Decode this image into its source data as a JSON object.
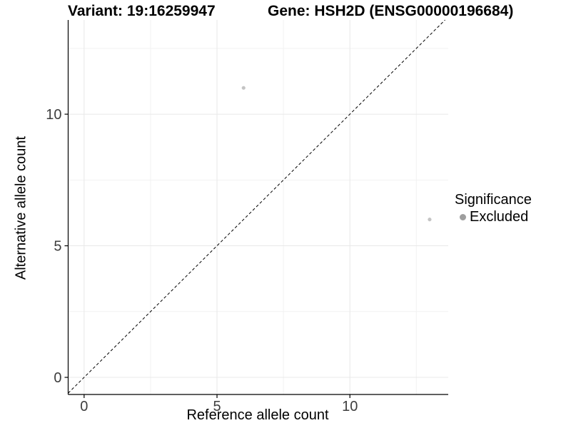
{
  "titles": {
    "variant": "Variant: 19:16259947",
    "gene": "Gene: HSH2D (ENSG00000196684)"
  },
  "chart_data": {
    "type": "scatter",
    "title_left": "Variant: 19:16259947",
    "title_right": "Gene: HSH2D (ENSG00000196684)",
    "xlabel": "Reference allele count",
    "ylabel": "Alternative allele count",
    "xlim": [
      -0.6,
      13.7
    ],
    "ylim": [
      -0.65,
      13.58
    ],
    "xticks": [
      0,
      5,
      10
    ],
    "yticks": [
      0,
      5,
      10
    ],
    "x_minor": [
      2.5,
      7.5,
      12.5
    ],
    "y_minor": [
      2.5,
      7.5,
      12.5
    ],
    "grid": true,
    "identity_line": {
      "present": true,
      "style": "dashed",
      "color": "#000000"
    },
    "series": [
      {
        "name": "Excluded",
        "significance": "Excluded",
        "point_color": "#c4c4c4",
        "points": [
          {
            "x": 6,
            "y": 11
          },
          {
            "x": 13,
            "y": 6
          }
        ]
      }
    ],
    "legend": {
      "position": "right",
      "title": "Significance",
      "items": [
        {
          "label": "Excluded",
          "key_color": "#9e9e9e"
        }
      ]
    }
  },
  "colors": {
    "point": "#c4c4c4",
    "legend_key": "#9e9e9e",
    "grid_major": "#e8e8e8",
    "grid_minor": "#f2f2f2",
    "axis_line": "#000000",
    "tick_text": "#3d3d3d"
  }
}
